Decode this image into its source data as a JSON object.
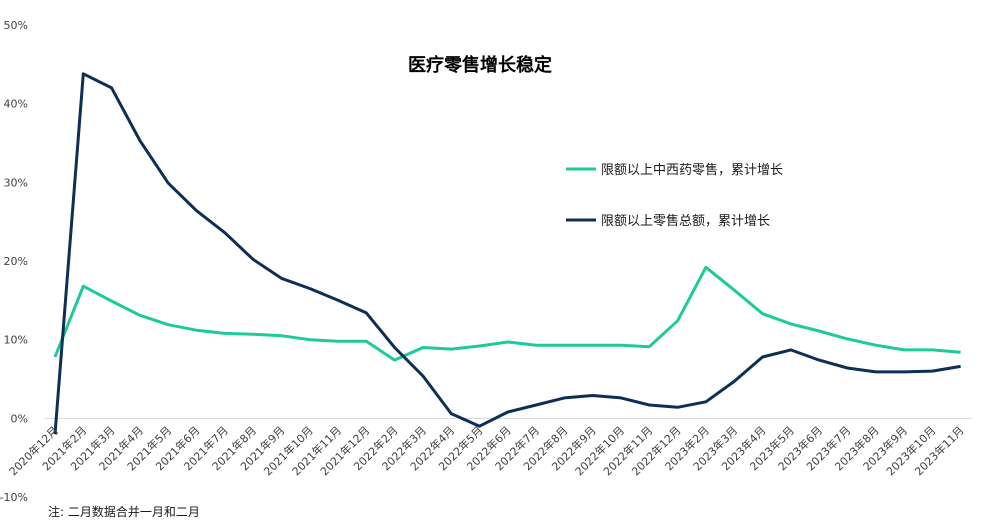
{
  "chart_data": {
    "type": "line",
    "title": "医疗零售增长稳定",
    "note": "注: 二月数据合并一月和二月",
    "ylim": [
      -10,
      50
    ],
    "yticks": [
      -10,
      0,
      10,
      20,
      30,
      40,
      50
    ],
    "ytick_labels": [
      "-10%",
      "0%",
      "10%",
      "20%",
      "30%",
      "40%",
      "50%"
    ],
    "grid": "horizontal-zero-line",
    "legend_position": "right-upper",
    "categories": [
      "2020年12月",
      "2021年2月",
      "2021年3月",
      "2021年4月",
      "2021年5月",
      "2021年6月",
      "2021年7月",
      "2021年8月",
      "2021年9月",
      "2021年10月",
      "2021年11月",
      "2021年12月",
      "2022年2月",
      "2022年3月",
      "2022年4月",
      "2022年5月",
      "2022年6月",
      "2022年7月",
      "2022年8月",
      "2022年9月",
      "2022年10月",
      "2022年11月",
      "2022年12月",
      "2023年2月",
      "2023年3月",
      "2023年4月",
      "2023年5月",
      "2023年6月",
      "2023年7月",
      "2023年8月",
      "2023年9月",
      "2023年10月",
      "2023年11月"
    ],
    "series": [
      {
        "name": "限额以上中西药零售，累计增长",
        "color": "#1ec99a",
        "values": [
          7.8,
          16.8,
          14.9,
          13.1,
          11.9,
          11.2,
          10.8,
          10.7,
          10.5,
          10.0,
          9.8,
          9.8,
          7.4,
          9.0,
          8.8,
          9.2,
          9.7,
          9.3,
          9.3,
          9.3,
          9.3,
          9.1,
          12.4,
          19.2,
          16.3,
          13.3,
          12.0,
          11.1,
          10.1,
          9.3,
          8.7,
          8.7,
          8.4
        ]
      },
      {
        "name": "限额以上零售总额，累计增长",
        "color": "#0d2f55",
        "values": [
          -2.0,
          43.8,
          42.0,
          35.3,
          29.9,
          26.4,
          23.6,
          20.2,
          17.8,
          16.5,
          15.0,
          13.4,
          9.0,
          5.4,
          0.6,
          -1.0,
          0.8,
          1.7,
          2.6,
          2.9,
          2.6,
          1.7,
          1.4,
          2.1,
          4.7,
          7.8,
          8.7,
          7.4,
          6.4,
          5.9,
          5.9,
          6.0,
          6.6
        ]
      }
    ]
  }
}
